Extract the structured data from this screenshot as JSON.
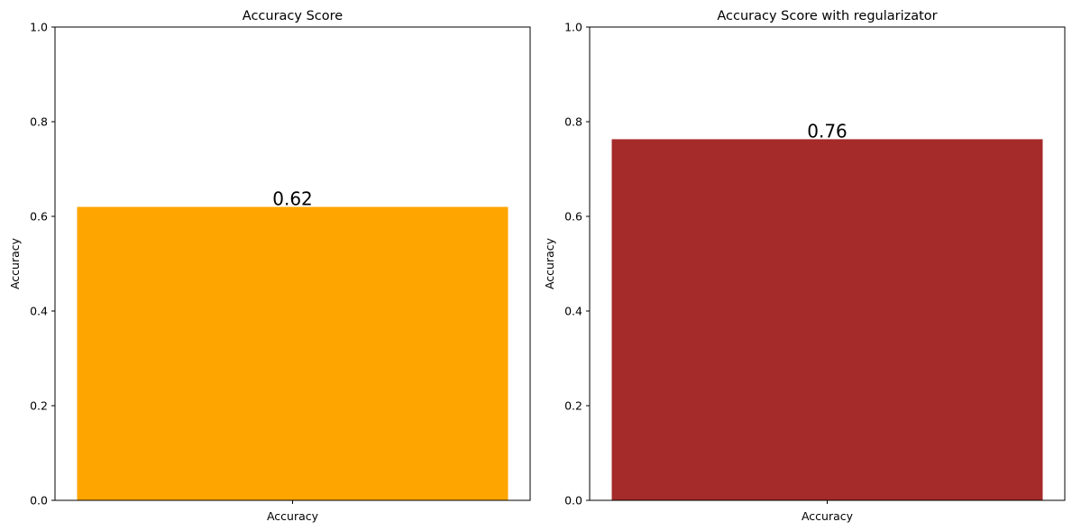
{
  "chart_data": [
    {
      "type": "bar",
      "title": "Accuracy Score",
      "xlabel": "",
      "ylabel": "Accuracy",
      "categories": [
        "Accuracy"
      ],
      "values": [
        0.62
      ],
      "data_labels": [
        "0.62"
      ],
      "ylim": [
        0,
        1
      ],
      "yticks": [
        "0.0",
        "0.2",
        "0.4",
        "0.6",
        "0.8",
        "1.0"
      ],
      "bar_color": "#ffa500",
      "grid": false
    },
    {
      "type": "bar",
      "title": "Accuracy Score with regularizator",
      "xlabel": "",
      "ylabel": "Accuracy",
      "categories": [
        "Accuracy"
      ],
      "values": [
        0.763
      ],
      "data_labels": [
        "0.76"
      ],
      "ylim": [
        0,
        1
      ],
      "yticks": [
        "0.0",
        "0.2",
        "0.4",
        "0.6",
        "0.8",
        "1.0"
      ],
      "bar_color": "#a52a2a",
      "grid": false
    }
  ]
}
